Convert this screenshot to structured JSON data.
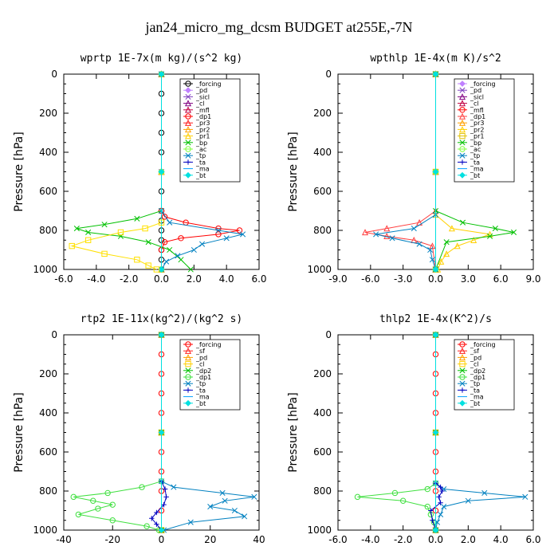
{
  "page": {
    "title": "jan24_micro_mg_dcsm  BUDGET at255E,-7N"
  },
  "chart_data": [
    {
      "type": "line",
      "title": "wprtp  1E-7x(m kg)/(s^2 kg)",
      "ylabel": "Pressure [hPa]",
      "xlim": [
        -6.0,
        6.0
      ],
      "xticks": [
        -6.0,
        -4.0,
        -2.0,
        0.0,
        2.0,
        4.0,
        6.0
      ],
      "xtick_labels": [
        "-6.0",
        "-4.0",
        "-2.0",
        "0.0",
        "2.0",
        "4.0",
        "6.0"
      ],
      "ylim": [
        1000,
        0
      ],
      "yticks": [
        0,
        200,
        400,
        600,
        800,
        1000
      ],
      "legend_position": "top-right",
      "series": [
        {
          "name": "_forcing",
          "color": "#000000",
          "marker": "circle",
          "y": [
            0,
            100,
            200,
            300,
            400,
            500,
            600,
            700,
            750,
            800,
            850,
            900,
            950,
            1000
          ],
          "x": [
            0,
            0,
            0,
            0,
            0,
            0,
            0,
            0,
            0,
            0,
            0,
            0,
            0,
            0
          ]
        },
        {
          "name": "_pd",
          "color": "#c080ff",
          "marker": "diamond",
          "y": [
            0,
            500,
            1000
          ],
          "x": [
            0,
            0,
            0
          ]
        },
        {
          "name": "_sicl",
          "color": "#8040c0",
          "marker": "cross",
          "y": [
            0,
            500,
            1000
          ],
          "x": [
            0,
            0,
            0
          ]
        },
        {
          "name": "_cl",
          "color": "#800080",
          "marker": "triangle",
          "y": [
            0,
            500,
            1000
          ],
          "x": [
            0,
            0,
            0
          ]
        },
        {
          "name": "_mfl",
          "color": "#c00040",
          "marker": "triangle",
          "y": [
            0,
            500,
            1000
          ],
          "x": [
            0,
            0,
            0
          ]
        },
        {
          "name": "_dp1",
          "color": "#ff0000",
          "marker": "circle",
          "y": [
            0,
            700,
            730,
            760,
            790,
            800,
            820,
            840,
            860,
            900,
            1000
          ],
          "x": [
            0,
            0,
            0.2,
            1.5,
            3.5,
            4.8,
            3.5,
            1.2,
            0.2,
            0,
            0
          ]
        },
        {
          "name": "_pr3",
          "color": "#ff2020",
          "marker": "triangle",
          "y": [
            0,
            500,
            1000
          ],
          "x": [
            0,
            0,
            0
          ]
        },
        {
          "name": "_pr2",
          "color": "#ffa000",
          "marker": "triangle",
          "y": [
            0,
            500,
            1000
          ],
          "x": [
            0,
            0,
            0
          ]
        },
        {
          "name": "_pr1",
          "color": "#ffd000",
          "marker": "triangle",
          "y": [
            0,
            500,
            1000
          ],
          "x": [
            0,
            0,
            0
          ]
        },
        {
          "name": "_bp",
          "color": "#00c000",
          "marker": "cross",
          "y": [
            0,
            700,
            740,
            770,
            790,
            810,
            830,
            860,
            900,
            950,
            1000
          ],
          "x": [
            0,
            0,
            -1.5,
            -3.5,
            -5.2,
            -4.5,
            -2.5,
            -0.8,
            0.5,
            1.2,
            1.8
          ]
        },
        {
          "name": "_ac",
          "color": "#80ff40",
          "marker": "circle",
          "y": [
            0,
            500,
            1000
          ],
          "x": [
            0,
            0,
            0
          ]
        },
        {
          "name": "_tp",
          "color": "#0080c0",
          "marker": "cross",
          "y": [
            0,
            700,
            760,
            800,
            820,
            840,
            870,
            900,
            930,
            960,
            1000
          ],
          "x": [
            0,
            0,
            0.5,
            3.5,
            5.0,
            4.0,
            2.5,
            2.0,
            1.0,
            0.3,
            0
          ]
        },
        {
          "name": "_ta",
          "color": "#0000c0",
          "marker": "plus",
          "y": [
            0,
            500,
            1000
          ],
          "x": [
            0,
            0,
            0
          ]
        },
        {
          "name": "_ma",
          "color": "#00a0ff",
          "marker": "none",
          "y": [
            0,
            500,
            1000
          ],
          "x": [
            0,
            0,
            0
          ]
        },
        {
          "name": "_bt",
          "color": "#00e0e0",
          "marker": "diamond",
          "y": [
            0,
            500,
            1000
          ],
          "x": [
            0,
            0,
            0
          ]
        },
        {
          "name": "",
          "color": "#ffe000",
          "marker": "square",
          "y": [
            760,
            790,
            810,
            850,
            880,
            920,
            950,
            980,
            1000
          ],
          "x": [
            0,
            -1.0,
            -2.5,
            -4.5,
            -5.5,
            -3.5,
            -1.5,
            -0.8,
            -0.3
          ]
        }
      ]
    },
    {
      "type": "line",
      "title": "wpthlp  1E-4x(m K)/s^2",
      "ylabel": "Pressure [hPa]",
      "xlim": [
        -9.0,
        9.0
      ],
      "xticks": [
        -9.0,
        -6.0,
        -3.0,
        0.0,
        3.0,
        6.0,
        9.0
      ],
      "xtick_labels": [
        "-9.0",
        "-6.0",
        "-3.0",
        "0.0",
        "3.0",
        "6.0",
        "9.0"
      ],
      "ylim": [
        1000,
        0
      ],
      "yticks": [
        0,
        200,
        400,
        600,
        800,
        1000
      ],
      "legend_position": "top-right",
      "series": [
        {
          "name": "_forcing",
          "color": "#c080ff",
          "marker": "diamond",
          "y": [
            0,
            500,
            1000
          ],
          "x": [
            0,
            0,
            0
          ]
        },
        {
          "name": "_pd",
          "color": "#8040c0",
          "marker": "cross",
          "y": [
            0,
            500,
            1000
          ],
          "x": [
            0,
            0,
            0
          ]
        },
        {
          "name": "_sicl",
          "color": "#800080",
          "marker": "triangle",
          "y": [
            0,
            500,
            1000
          ],
          "x": [
            0,
            0,
            0
          ]
        },
        {
          "name": "_cl",
          "color": "#c00040",
          "marker": "triangle",
          "y": [
            0,
            500,
            1000
          ],
          "x": [
            0,
            0,
            0
          ]
        },
        {
          "name": "_mfl",
          "color": "#ff0000",
          "marker": "circle",
          "y": [
            0,
            500,
            1000
          ],
          "x": [
            0,
            0,
            0
          ]
        },
        {
          "name": "_dp1",
          "color": "#ff4040",
          "marker": "triangle",
          "y": [
            0,
            700,
            760,
            790,
            810,
            830,
            850,
            880,
            1000
          ],
          "x": [
            0,
            0,
            -1.5,
            -4.5,
            -6.5,
            -4.5,
            -2.0,
            -0.3,
            0
          ]
        },
        {
          "name": "_pr3",
          "color": "#ffa000",
          "marker": "triangle",
          "y": [
            0,
            500,
            1000
          ],
          "x": [
            0,
            0,
            0
          ]
        },
        {
          "name": "_pr2",
          "color": "#ffd000",
          "marker": "triangle",
          "y": [
            0,
            720,
            790,
            820,
            850,
            880,
            920,
            960,
            1000
          ],
          "x": [
            0,
            0,
            1.5,
            5.0,
            3.5,
            2.0,
            1.0,
            0.5,
            0.2
          ]
        },
        {
          "name": "_pr1",
          "color": "#e0c000",
          "marker": "square",
          "y": [
            0,
            500,
            1000
          ],
          "x": [
            0,
            0,
            0
          ]
        },
        {
          "name": "_bp",
          "color": "#00c000",
          "marker": "cross",
          "y": [
            0,
            700,
            760,
            790,
            810,
            830,
            860,
            1000
          ],
          "x": [
            0,
            0,
            2.5,
            5.5,
            7.2,
            5.0,
            1.0,
            0
          ]
        },
        {
          "name": "_ac",
          "color": "#80ff40",
          "marker": "circle",
          "y": [
            0,
            500,
            1000
          ],
          "x": [
            0,
            0,
            0
          ]
        },
        {
          "name": "_tp",
          "color": "#0080c0",
          "marker": "cross",
          "y": [
            0,
            720,
            790,
            820,
            840,
            870,
            900,
            950,
            1000
          ],
          "x": [
            0,
            0,
            -2.0,
            -5.5,
            -4.0,
            -1.5,
            -0.5,
            -0.3,
            0
          ]
        },
        {
          "name": "_ta",
          "color": "#0000c0",
          "marker": "plus",
          "y": [
            0,
            500,
            1000
          ],
          "x": [
            0,
            0,
            0
          ]
        },
        {
          "name": "_ma",
          "color": "#00a0ff",
          "marker": "none",
          "y": [
            0,
            500,
            1000
          ],
          "x": [
            0,
            0,
            0
          ]
        },
        {
          "name": "_bt",
          "color": "#00e0e0",
          "marker": "diamond",
          "y": [
            0,
            500,
            1000
          ],
          "x": [
            0,
            0,
            0
          ]
        }
      ]
    },
    {
      "type": "line",
      "title": "rtp2  1E-11x(kg^2)/(kg^2 s)",
      "ylabel": "Pressure [hPa]",
      "xlim": [
        -40,
        40
      ],
      "xticks": [
        -40,
        -20,
        0,
        20,
        40
      ],
      "xtick_labels": [
        "-40",
        "-20",
        "0",
        "20",
        "40"
      ],
      "ylim": [
        1000,
        0
      ],
      "yticks": [
        0,
        200,
        400,
        600,
        800,
        1000
      ],
      "legend_position": "top-right",
      "series": [
        {
          "name": "_forcing",
          "color": "#ff0000",
          "marker": "circle",
          "y": [
            0,
            100,
            200,
            300,
            400,
            500,
            600,
            700,
            800,
            900,
            1000
          ],
          "x": [
            0,
            0,
            0,
            0,
            0,
            0,
            0,
            0,
            0,
            0,
            0
          ]
        },
        {
          "name": "_sf",
          "color": "#ff2020",
          "marker": "triangle",
          "y": [
            0,
            500,
            1000
          ],
          "x": [
            0,
            0,
            0
          ]
        },
        {
          "name": "_pd",
          "color": "#ffa000",
          "marker": "triangle",
          "y": [
            0,
            500,
            1000
          ],
          "x": [
            0,
            0,
            0
          ]
        },
        {
          "name": "_cl",
          "color": "#ffd000",
          "marker": "square",
          "y": [
            0,
            500,
            1000
          ],
          "x": [
            0,
            0,
            0
          ]
        },
        {
          "name": "_dp2",
          "color": "#00c000",
          "marker": "cross",
          "y": [
            0,
            500,
            1000
          ],
          "x": [
            0,
            0,
            0
          ]
        },
        {
          "name": "_dp1",
          "color": "#40e040",
          "marker": "circle",
          "y": [
            0,
            750,
            780,
            810,
            830,
            850,
            870,
            890,
            920,
            950,
            980,
            1000
          ],
          "x": [
            0,
            0,
            -8,
            -22,
            -36,
            -28,
            -20,
            -26,
            -34,
            -20,
            -6,
            -1
          ]
        },
        {
          "name": "_tp",
          "color": "#0080c0",
          "marker": "cross",
          "y": [
            0,
            750,
            780,
            810,
            830,
            850,
            880,
            900,
            930,
            960,
            1000
          ],
          "x": [
            0,
            0,
            5,
            25,
            38,
            26,
            20,
            30,
            34,
            12,
            1
          ]
        },
        {
          "name": "_ta",
          "color": "#0000c0",
          "marker": "plus",
          "y": [
            0,
            750,
            790,
            830,
            870,
            910,
            940,
            970,
            1000
          ],
          "x": [
            0,
            0,
            1.5,
            2,
            1,
            -2,
            -4,
            -2,
            0
          ]
        },
        {
          "name": "_ma",
          "color": "#00a0ff",
          "marker": "none",
          "y": [
            0,
            500,
            1000
          ],
          "x": [
            0,
            0,
            0
          ]
        },
        {
          "name": "_bt",
          "color": "#00e0e0",
          "marker": "diamond",
          "y": [
            0,
            500,
            1000
          ],
          "x": [
            0,
            0,
            0
          ]
        }
      ]
    },
    {
      "type": "line",
      "title": "thlp2  1E-4x(K^2)/s",
      "ylabel": "Pressure [hPa]",
      "xlim": [
        -6.0,
        6.0
      ],
      "xticks": [
        -6.0,
        -4.0,
        -2.0,
        0.0,
        2.0,
        4.0,
        6.0
      ],
      "xtick_labels": [
        "-6.0",
        "-4.0",
        "-2.0",
        "0.0",
        "2.0",
        "4.0",
        "6.0"
      ],
      "ylim": [
        1000,
        0
      ],
      "yticks": [
        0,
        200,
        400,
        600,
        800,
        1000
      ],
      "legend_position": "top-right",
      "series": [
        {
          "name": "_forcing",
          "color": "#ff0000",
          "marker": "circle",
          "y": [
            0,
            100,
            200,
            300,
            400,
            500,
            600,
            700,
            800,
            900,
            1000
          ],
          "x": [
            0,
            0,
            0,
            0,
            0,
            0,
            0,
            0,
            0,
            0,
            0
          ]
        },
        {
          "name": "_sf",
          "color": "#ff2020",
          "marker": "triangle",
          "y": [
            0,
            500,
            1000
          ],
          "x": [
            0,
            0,
            0
          ]
        },
        {
          "name": "_pd",
          "color": "#ffa000",
          "marker": "triangle",
          "y": [
            0,
            500,
            1000
          ],
          "x": [
            0,
            0,
            0
          ]
        },
        {
          "name": "_cl",
          "color": "#ffd000",
          "marker": "square",
          "y": [
            0,
            500,
            1000
          ],
          "x": [
            0,
            0,
            0
          ]
        },
        {
          "name": "_dp2",
          "color": "#00c000",
          "marker": "cross",
          "y": [
            0,
            500,
            1000
          ],
          "x": [
            0,
            0,
            0
          ]
        },
        {
          "name": "_dp1",
          "color": "#40e040",
          "marker": "circle",
          "y": [
            0,
            760,
            790,
            810,
            830,
            850,
            880,
            920,
            960,
            1000
          ],
          "x": [
            0,
            0,
            -0.5,
            -2.5,
            -4.8,
            -2.0,
            -0.5,
            -0.3,
            -0.1,
            0
          ]
        },
        {
          "name": "_tp",
          "color": "#0080c0",
          "marker": "cross",
          "y": [
            0,
            760,
            790,
            810,
            830,
            850,
            880,
            920,
            960,
            1000
          ],
          "x": [
            0,
            0,
            0.5,
            3.0,
            5.5,
            2.0,
            0.5,
            0.3,
            0.1,
            0
          ]
        },
        {
          "name": "_ta",
          "color": "#0000c0",
          "marker": "plus",
          "y": [
            0,
            760,
            780,
            800,
            830,
            860,
            900,
            950,
            1000
          ],
          "x": [
            0,
            0,
            0.3,
            0.4,
            0.2,
            0.3,
            -0.3,
            -0.2,
            0
          ]
        },
        {
          "name": "_ma",
          "color": "#00a0ff",
          "marker": "none",
          "y": [
            0,
            500,
            1000
          ],
          "x": [
            0,
            0,
            0
          ]
        },
        {
          "name": "_bt",
          "color": "#00e0e0",
          "marker": "diamond",
          "y": [
            0,
            500,
            1000
          ],
          "x": [
            0,
            0,
            0
          ]
        }
      ]
    }
  ]
}
